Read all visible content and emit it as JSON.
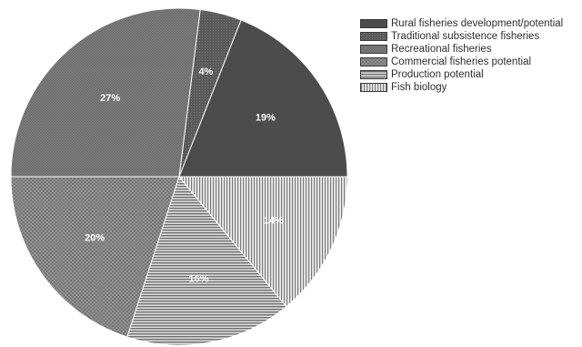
{
  "chart_data": {
    "type": "pie",
    "title": "",
    "categories": [
      "Rural fisheries development/potential",
      "Traditional subsistence fisheries",
      "Recreational fisheries",
      "Commercial fisheries potential",
      "Production potential",
      "Fish biology"
    ],
    "values": [
      19,
      4,
      27,
      20,
      16,
      14
    ],
    "value_labels": [
      "19%",
      "4%",
      "27%",
      "20%",
      "16%",
      "14%"
    ],
    "unit": "%",
    "legend_position": "top-right",
    "slice_order": "counter-clockwise from 3 o'clock",
    "colors": [
      "#4c4c4c",
      "#5a5a5a",
      "#6a6a6a",
      "#737373",
      "#9a9a9a",
      "#c4c4c4"
    ],
    "fills": [
      "solid",
      "dense-dots",
      "fine-crosshatch",
      "crosshatch",
      "horizontal-lines",
      "vertical-lines"
    ]
  }
}
